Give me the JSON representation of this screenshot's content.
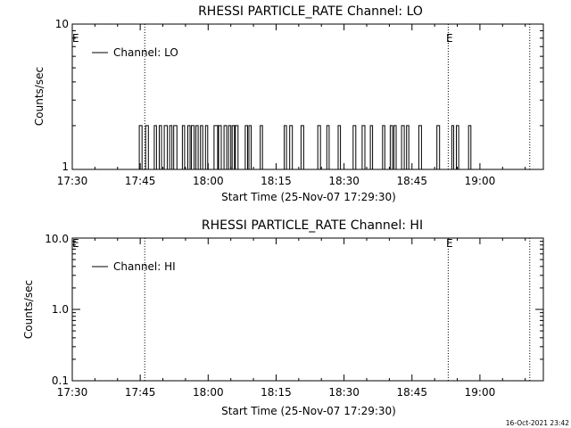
{
  "stamp": "16-Oct-2021 23:42",
  "colors": {
    "background": "#ffffff",
    "foreground": "#000000"
  },
  "chart_data": [
    {
      "type": "line",
      "title": "RHESSI PARTICLE_RATE Channel: LO",
      "xlabel": "Start Time (25-Nov-07 17:29:30)",
      "ylabel": "Counts/sec",
      "y_scale": "log",
      "xlim": [
        "17:30",
        "19:14"
      ],
      "x_tick_labels": [
        "17:30",
        "17:45",
        "18:00",
        "18:15",
        "18:30",
        "18:45",
        "19:00"
      ],
      "ylim": [
        1,
        10
      ],
      "y_tick_labels": [
        "1",
        "10"
      ],
      "legend": {
        "position": "top-left",
        "entries": [
          "Channel: LO"
        ]
      },
      "markers": [
        {
          "label": "E",
          "time": "17:30"
        },
        {
          "label": "E",
          "time": "18:53"
        }
      ],
      "dotted_lines": [
        "17:46",
        "18:53",
        "19:11"
      ],
      "series": [
        {
          "name": "Channel: LO",
          "baseline": 1,
          "step_value": 2,
          "x_unit": "minutes after 17:30",
          "pulses": [
            [
              14.8,
              15.4
            ],
            [
              16.2,
              16.8
            ],
            [
              18.1,
              18.6
            ],
            [
              19.2,
              19.7
            ],
            [
              20.3,
              21.0
            ],
            [
              21.5,
              22.0
            ],
            [
              22.4,
              23.1
            ],
            [
              24.3,
              24.8
            ],
            [
              25.5,
              26.0
            ],
            [
              26.3,
              26.9
            ],
            [
              27.3,
              27.8
            ],
            [
              28.3,
              28.8
            ],
            [
              29.4,
              29.9
            ],
            [
              31.3,
              32.1
            ],
            [
              32.3,
              32.9
            ],
            [
              33.5,
              34.1
            ],
            [
              34.5,
              35.0
            ],
            [
              35.3,
              35.8
            ],
            [
              36.0,
              36.6
            ],
            [
              38.2,
              38.7
            ],
            [
              39.0,
              39.5
            ],
            [
              41.5,
              42.0
            ],
            [
              46.8,
              47.3
            ],
            [
              48.0,
              48.6
            ],
            [
              50.5,
              51.1
            ],
            [
              54.2,
              54.8
            ],
            [
              56.2,
              56.7
            ],
            [
              58.7,
              59.2
            ],
            [
              62.0,
              62.6
            ],
            [
              64.0,
              64.6
            ],
            [
              65.8,
              66.3
            ],
            [
              68.5,
              69.0
            ],
            [
              70.2,
              70.7
            ],
            [
              71.0,
              71.5
            ],
            [
              72.7,
              73.3
            ],
            [
              73.8,
              74.3
            ],
            [
              76.5,
              77.1
            ],
            [
              80.5,
              81.1
            ],
            [
              83.8,
              84.2
            ],
            [
              84.8,
              85.3
            ],
            [
              87.5,
              88.0
            ]
          ]
        }
      ]
    },
    {
      "type": "line",
      "title": "RHESSI PARTICLE_RATE Channel: HI",
      "xlabel": "Start Time (25-Nov-07 17:29:30)",
      "ylabel": "Counts/sec",
      "y_scale": "log",
      "xlim": [
        "17:30",
        "19:14"
      ],
      "x_tick_labels": [
        "17:30",
        "17:45",
        "18:00",
        "18:15",
        "18:30",
        "18:45",
        "19:00"
      ],
      "ylim": [
        0.1,
        10
      ],
      "y_tick_labels": [
        "0.1",
        "1.0",
        "10.0"
      ],
      "legend": {
        "position": "top-left",
        "entries": [
          "Channel: HI"
        ]
      },
      "markers": [
        {
          "label": "E",
          "time": "17:30"
        },
        {
          "label": "E",
          "time": "18:53"
        }
      ],
      "dotted_lines": [
        "17:46",
        "18:53",
        "19:11"
      ],
      "series": [
        {
          "name": "Channel: HI",
          "pulses": []
        }
      ]
    }
  ]
}
